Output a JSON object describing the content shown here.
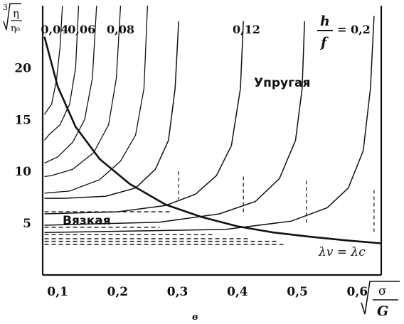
{
  "chart_data": {
    "type": "line",
    "xlim": [
      0.075,
      0.64
    ],
    "ylim": [
      0,
      26
    ],
    "x_ticks": [
      "0,1",
      "0,2",
      "0,3",
      "0,4",
      "0,5",
      "0,6"
    ],
    "x_tick_values": [
      0.1,
      0.2,
      0.3,
      0.4,
      0.5,
      0.6
    ],
    "y_ticks": [
      "5",
      "10",
      "15",
      "20"
    ],
    "y_tick_values": [
      5,
      10,
      15,
      20
    ],
    "xlabel_sub": "в",
    "x_axis_label": {
      "numerator": "σ",
      "denominator": "G"
    },
    "y_axis_label": {
      "index": "3",
      "numerator": "η",
      "denominator": "η₀"
    },
    "param_label": {
      "numerator": "h",
      "denominator": "f",
      "value": "= 0,2"
    },
    "region_elastic": "Упругая",
    "region_viscous": "Вязкая",
    "boundary_label": "λv = λc",
    "curve_labels": [
      {
        "text": "0,04",
        "x": 0.095
      },
      {
        "text": "0,06",
        "x": 0.14
      },
      {
        "text": "0,08",
        "x": 0.205
      },
      {
        "text": "0,12",
        "x": 0.415
      },
      {
        "text": "= 0,2",
        "x": 0.6
      }
    ],
    "family": [
      {
        "h": [
          3.05,
          3.6,
          4.4,
          5.3,
          6.8,
          7.5,
          7.6
        ],
        "points": [
          [
            0.108,
            26
          ],
          [
            0.104,
            22
          ],
          [
            0.098,
            18.8
          ],
          [
            0.09,
            16.5
          ],
          [
            0.078,
            15.5
          ]
        ]
      },
      {
        "h": [
          3.05,
          3.6,
          4.4,
          5.3,
          6.8,
          7.5,
          8.6
        ],
        "points": [
          [
            0.135,
            26
          ],
          [
            0.13,
            20
          ],
          [
            0.12,
            16.5
          ],
          [
            0.104,
            14.5
          ],
          [
            0.085,
            13.5
          ],
          [
            0.078,
            13
          ]
        ]
      },
      {
        "h": [
          3.05,
          3.6,
          4.4,
          5.3,
          6.8,
          7.5,
          9.9
        ],
        "points": [
          [
            0.165,
            26
          ],
          [
            0.158,
            19
          ],
          [
            0.145,
            15
          ],
          [
            0.125,
            12.8
          ],
          [
            0.1,
            11.4
          ],
          [
            0.078,
            10.8
          ]
        ]
      },
      {
        "h": [
          3.05,
          3.6,
          4.4,
          5.3,
          6.8,
          7.5,
          9.2
        ],
        "points": [
          [
            0.205,
            26
          ],
          [
            0.198,
            19
          ],
          [
            0.185,
            14.5
          ],
          [
            0.16,
            11.8
          ],
          [
            0.125,
            10.2
          ],
          [
            0.09,
            9.6
          ],
          [
            0.078,
            9.5
          ]
        ]
      },
      {
        "h": [
          3.05,
          3.6,
          4.4,
          5.3,
          6.8,
          7.5,
          8.4
        ],
        "points": [
          [
            0.25,
            26
          ],
          [
            0.244,
            18
          ],
          [
            0.23,
            13.5
          ],
          [
            0.205,
            11
          ],
          [
            0.17,
            9.2
          ],
          [
            0.12,
            8.1
          ],
          [
            0.078,
            7.9
          ]
        ]
      },
      {
        "h": [
          3.05,
          3.6,
          4.4,
          5.3,
          6.8,
          7.5,
          7.5
        ],
        "points": [
          [
            0.302,
            24.5
          ],
          [
            0.296,
            18
          ],
          [
            0.285,
            13
          ],
          [
            0.263,
            10.2
          ],
          [
            0.23,
            8.4
          ],
          [
            0.18,
            7.6
          ],
          [
            0.11,
            7.4
          ],
          [
            0.078,
            7.4
          ]
        ]
      },
      {
        "h": [
          3.05,
          3.6,
          4.4,
          5.3,
          6.8,
          7.5,
          6.0
        ],
        "points": [
          [
            0.41,
            24.5
          ],
          [
            0.405,
            18
          ],
          [
            0.39,
            12.5
          ],
          [
            0.365,
            9.6
          ],
          [
            0.33,
            7.8
          ],
          [
            0.28,
            6.7
          ],
          [
            0.2,
            6.1
          ],
          [
            0.078,
            5.9
          ]
        ]
      },
      {
        "h": [
          3.05,
          3.6,
          4.4,
          5.3,
          6.8,
          7.5,
          4.9
        ],
        "points": [
          [
            0.512,
            24.5
          ],
          [
            0.508,
            18
          ],
          [
            0.497,
            13
          ],
          [
            0.47,
            9.3
          ],
          [
            0.43,
            7.1
          ],
          [
            0.37,
            5.9
          ],
          [
            0.27,
            5.1
          ],
          [
            0.078,
            4.8
          ]
        ]
      },
      {
        "h": [
          3.05,
          3.6,
          4.4,
          5.3,
          6.8,
          7.5,
          4.2
        ],
        "points": [
          [
            0.628,
            25
          ],
          [
            0.622,
            18
          ],
          [
            0.61,
            12
          ],
          [
            0.585,
            8.4
          ],
          [
            0.55,
            6.5
          ],
          [
            0.49,
            5.2
          ],
          [
            0.38,
            4.4
          ],
          [
            0.078,
            4.1
          ]
        ]
      }
    ],
    "viscous_lines": [
      {
        "x_end": 0.29,
        "y": 6.1
      },
      {
        "x_end": 0.27,
        "y": 4.6
      },
      {
        "x_end": 0.36,
        "y": 3.9
      },
      {
        "x_end": 0.42,
        "y": 3.5
      },
      {
        "x_end": 0.47,
        "y": 3.25
      },
      {
        "x_end": 0.48,
        "y": 2.95
      }
    ],
    "vertical_dashes": [
      {
        "x": 0.302,
        "y_top": 10,
        "y_bottom": 7.3
      },
      {
        "x": 0.41,
        "y_top": 9.5,
        "y_bottom": 6.0
      },
      {
        "x": 0.515,
        "y_top": 9.1,
        "y_bottom": 4.8
      },
      {
        "x": 0.628,
        "y_top": 8.2,
        "y_bottom": 4.1
      }
    ],
    "boundary_curve": [
      [
        0.078,
        23
      ],
      [
        0.1,
        18.2
      ],
      [
        0.13,
        14.3
      ],
      [
        0.17,
        11.2
      ],
      [
        0.22,
        8.8
      ],
      [
        0.28,
        6.8
      ],
      [
        0.34,
        5.6
      ],
      [
        0.4,
        4.7
      ],
      [
        0.46,
        4.1
      ],
      [
        0.52,
        3.7
      ],
      [
        0.58,
        3.35
      ],
      [
        0.64,
        3.05
      ]
    ]
  }
}
